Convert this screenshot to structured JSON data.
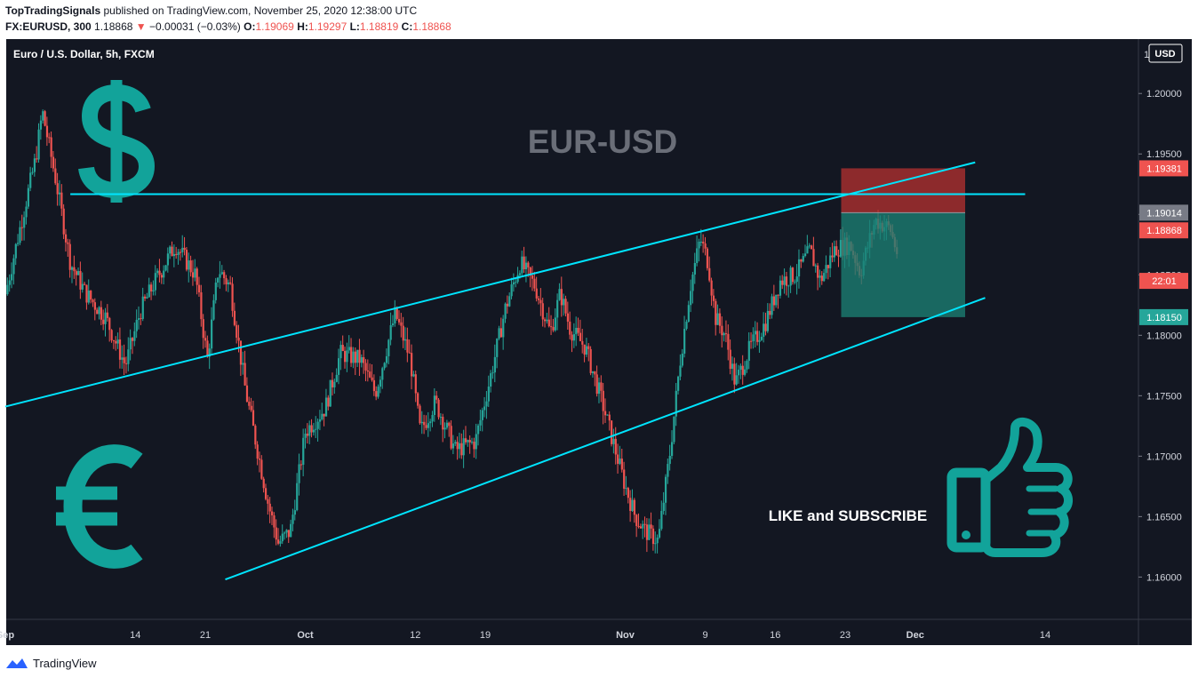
{
  "header": {
    "publisher": "TopTradingSignals",
    "published_text": "published on TradingView.com, November 25, 2020 12:38:00 UTC",
    "symbol": "FX:EURUSD, 300",
    "last": "1.18868",
    "arrow": "▼",
    "change": "−0.00031 (−0.03%)",
    "o_label": "O:",
    "o_value": "1.19069",
    "h_label": "H:",
    "h_value": "1.19297",
    "l_label": "L:",
    "l_value": "1.18819",
    "c_label": "C:",
    "c_value": "1.18868"
  },
  "chart_title": "Euro / U.S. Dollar, 5h, FXCM",
  "currency_button": "USD",
  "top_price_clip": "1",
  "watermark": "EUR-USD",
  "annotation": "LIKE and SUBSCRIBE",
  "footer_brand": "TradingView",
  "icons": [
    "dollar-icon",
    "euro-icon",
    "thumbs-up-icon",
    "tradingview-logo-icon"
  ],
  "colors": {
    "background": "#131722",
    "up_candle": "#26a69a",
    "down_candle": "#ef5350",
    "trendline": "#00e5ff",
    "stop_zone": "#b0302f",
    "target_zone": "#1b7f73",
    "icon_teal": "#12a39a",
    "watermark": "#6a6e78"
  },
  "chart_data": {
    "type": "candlestick",
    "timeframe": "5h",
    "ylim": [
      1.1565,
      1.2045
    ],
    "x_ticks": [
      "Sep",
      "14",
      "21",
      "Oct",
      "12",
      "19",
      "Nov",
      "9",
      "16",
      "23",
      "Dec",
      "14"
    ],
    "y_ticks": [
      "1.20000",
      "1.19500",
      "1.19000",
      "1.18500",
      "1.18000",
      "1.17500",
      "1.17000",
      "1.16500",
      "1.16000"
    ],
    "price_labels": [
      {
        "value": 1.19381,
        "text": "1.19381",
        "color": "#ef5350"
      },
      {
        "value": 1.19014,
        "text": "1.19014",
        "color": "#787b86"
      },
      {
        "value": 1.18868,
        "text": "1.18868",
        "color": "#ef5350"
      },
      {
        "value": 1.1845,
        "text": "22:01",
        "color": "#ef5350"
      },
      {
        "value": 1.1815,
        "text": "1.18150",
        "color": "#26a69a"
      }
    ],
    "path": [
      [
        0,
        1.1834
      ],
      [
        1.5,
        1.189
      ],
      [
        3,
        1.1945
      ],
      [
        3.7,
        1.1985
      ],
      [
        5,
        1.193
      ],
      [
        6.5,
        1.186
      ],
      [
        8,
        1.1835
      ],
      [
        10,
        1.1815
      ],
      [
        12,
        1.1775
      ],
      [
        13.5,
        1.182
      ],
      [
        15,
        1.1845
      ],
      [
        17,
        1.1875
      ],
      [
        19,
        1.185
      ],
      [
        20.2,
        1.178
      ],
      [
        21.3,
        1.1855
      ],
      [
        22.5,
        1.184
      ],
      [
        24,
        1.1755
      ],
      [
        26.3,
        1.166
      ],
      [
        27.3,
        1.1628
      ],
      [
        28.5,
        1.1638
      ],
      [
        30,
        1.172
      ],
      [
        32,
        1.174
      ],
      [
        33.5,
        1.1785
      ],
      [
        35.5,
        1.178
      ],
      [
        37,
        1.1752
      ],
      [
        39,
        1.1818
      ],
      [
        40.5,
        1.178
      ],
      [
        41.5,
        1.172
      ],
      [
        43,
        1.1745
      ],
      [
        45,
        1.1705
      ],
      [
        47,
        1.1712
      ],
      [
        48.5,
        1.1765
      ],
      [
        50,
        1.1822
      ],
      [
        51.5,
        1.186
      ],
      [
        53,
        1.184
      ],
      [
        54.5,
        1.1802
      ],
      [
        55.5,
        1.1835
      ],
      [
        56.5,
        1.1805
      ],
      [
        58,
        1.179
      ],
      [
        59.5,
        1.175
      ],
      [
        61,
        1.1705
      ],
      [
        62,
        1.1675
      ],
      [
        63,
        1.165
      ],
      [
        64,
        1.1638
      ],
      [
        65.3,
        1.163
      ],
      [
        66.5,
        1.1705
      ],
      [
        67.5,
        1.178
      ],
      [
        68.5,
        1.184
      ],
      [
        69.5,
        1.188
      ],
      [
        70.3,
        1.186
      ],
      [
        71,
        1.1815
      ],
      [
        72,
        1.18
      ],
      [
        73,
        1.176
      ],
      [
        74.5,
        1.179
      ],
      [
        76,
        1.181
      ],
      [
        77.5,
        1.1845
      ],
      [
        79,
        1.185
      ],
      [
        80.5,
        1.187
      ],
      [
        81.5,
        1.1845
      ],
      [
        83,
        1.1872
      ],
      [
        84.5,
        1.1875
      ],
      [
        85.5,
        1.1852
      ],
      [
        87,
        1.1895
      ],
      [
        88.5,
        1.1888
      ],
      [
        89.3,
        1.1865
      ]
    ],
    "lines": [
      {
        "name": "horizontal-resistance",
        "points": [
          [
            6.5,
            1.19167
          ],
          [
            102,
            1.19167
          ]
        ]
      },
      {
        "name": "channel-upper",
        "points": [
          [
            0,
            1.1741
          ],
          [
            97,
            1.1943
          ]
        ]
      },
      {
        "name": "channel-lower",
        "points": [
          [
            22,
            1.1598
          ],
          [
            98,
            1.1831
          ]
        ]
      }
    ],
    "positions": [
      {
        "type": "short",
        "entry": 1.19014,
        "stop": 1.19381,
        "target": 1.1815,
        "x_start": 83.6,
        "x_end": 96
      }
    ]
  }
}
